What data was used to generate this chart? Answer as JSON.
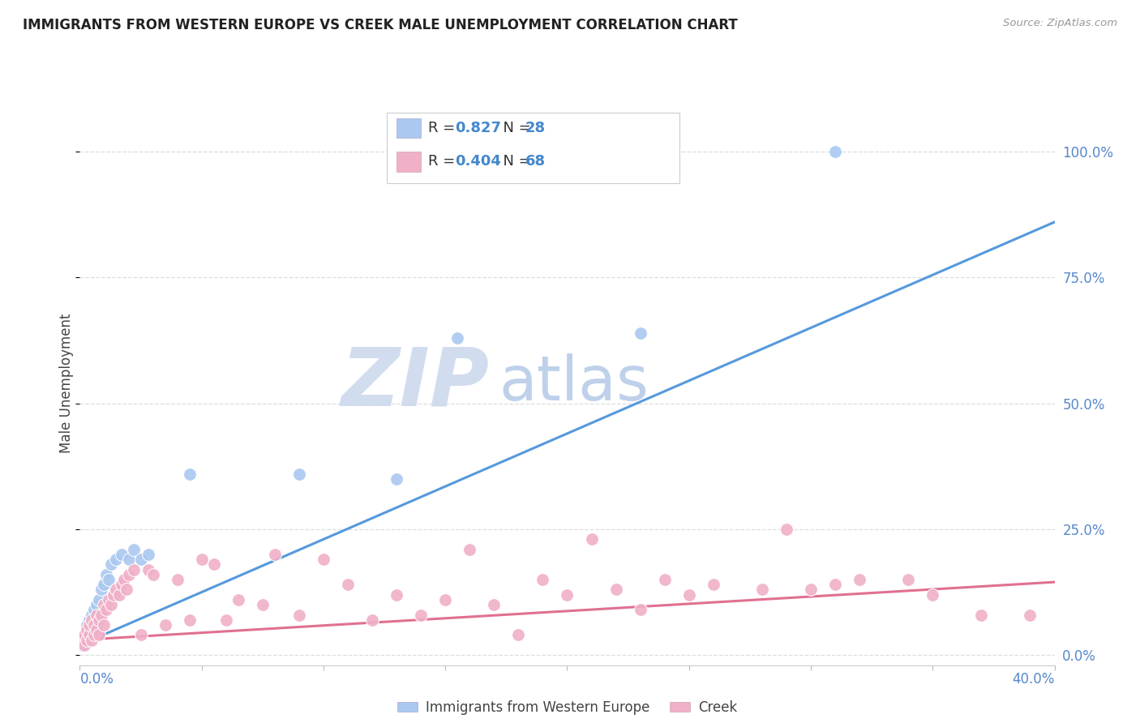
{
  "title": "IMMIGRANTS FROM WESTERN EUROPE VS CREEK MALE UNEMPLOYMENT CORRELATION CHART",
  "source": "Source: ZipAtlas.com",
  "ylabel": "Male Unemployment",
  "ytick_labels": [
    "0.0%",
    "25.0%",
    "50.0%",
    "75.0%",
    "100.0%"
  ],
  "ytick_values": [
    0.0,
    0.25,
    0.5,
    0.75,
    1.0
  ],
  "xlim": [
    0.0,
    0.4
  ],
  "ylim": [
    -0.02,
    1.1
  ],
  "background_color": "#ffffff",
  "grid_color": "#dddddd",
  "watermark_zip": "ZIP",
  "watermark_atlas": "atlas",
  "watermark_color_zip": "#d0dff5",
  "watermark_color_atlas": "#c0d0e8",
  "blue_series": {
    "label": "Immigrants from Western Europe",
    "R": "0.827",
    "N": "28",
    "color": "#aac8f0",
    "line_color": "#5599dd",
    "x": [
      0.001,
      0.002,
      0.003,
      0.003,
      0.004,
      0.004,
      0.005,
      0.005,
      0.006,
      0.007,
      0.008,
      0.009,
      0.01,
      0.011,
      0.012,
      0.013,
      0.015,
      0.017,
      0.02,
      0.022,
      0.025,
      0.028,
      0.045,
      0.09,
      0.13,
      0.155,
      0.23,
      0.31
    ],
    "y": [
      0.02,
      0.03,
      0.04,
      0.06,
      0.03,
      0.07,
      0.05,
      0.08,
      0.09,
      0.1,
      0.11,
      0.13,
      0.14,
      0.16,
      0.15,
      0.18,
      0.19,
      0.2,
      0.19,
      0.21,
      0.19,
      0.2,
      0.36,
      0.36,
      0.35,
      0.63,
      0.64,
      1.0
    ]
  },
  "pink_series": {
    "label": "Creek",
    "R": "0.404",
    "N": "68",
    "color": "#f0b0c8",
    "line_color": "#e07090",
    "x": [
      0.001,
      0.002,
      0.002,
      0.003,
      0.003,
      0.004,
      0.004,
      0.005,
      0.005,
      0.006,
      0.006,
      0.007,
      0.007,
      0.008,
      0.008,
      0.009,
      0.01,
      0.01,
      0.011,
      0.012,
      0.013,
      0.014,
      0.015,
      0.016,
      0.017,
      0.018,
      0.019,
      0.02,
      0.022,
      0.025,
      0.028,
      0.03,
      0.035,
      0.04,
      0.045,
      0.05,
      0.055,
      0.06,
      0.065,
      0.075,
      0.08,
      0.09,
      0.1,
      0.11,
      0.12,
      0.13,
      0.14,
      0.15,
      0.16,
      0.17,
      0.18,
      0.19,
      0.2,
      0.21,
      0.22,
      0.23,
      0.24,
      0.25,
      0.26,
      0.28,
      0.29,
      0.3,
      0.31,
      0.32,
      0.34,
      0.35,
      0.37,
      0.39
    ],
    "y": [
      0.03,
      0.02,
      0.04,
      0.03,
      0.05,
      0.04,
      0.06,
      0.03,
      0.07,
      0.04,
      0.06,
      0.05,
      0.08,
      0.04,
      0.07,
      0.08,
      0.06,
      0.1,
      0.09,
      0.11,
      0.1,
      0.12,
      0.13,
      0.12,
      0.14,
      0.15,
      0.13,
      0.16,
      0.17,
      0.04,
      0.17,
      0.16,
      0.06,
      0.15,
      0.07,
      0.19,
      0.18,
      0.07,
      0.11,
      0.1,
      0.2,
      0.08,
      0.19,
      0.14,
      0.07,
      0.12,
      0.08,
      0.11,
      0.21,
      0.1,
      0.04,
      0.15,
      0.12,
      0.23,
      0.13,
      0.09,
      0.15,
      0.12,
      0.14,
      0.13,
      0.25,
      0.13,
      0.14,
      0.15,
      0.15,
      0.12,
      0.08,
      0.08
    ]
  },
  "blue_line": {
    "x0": 0.0,
    "y0": 0.02,
    "x1": 0.4,
    "y1": 0.86
  },
  "pink_line": {
    "x0": 0.0,
    "y0": 0.03,
    "x1": 0.4,
    "y1": 0.145
  }
}
